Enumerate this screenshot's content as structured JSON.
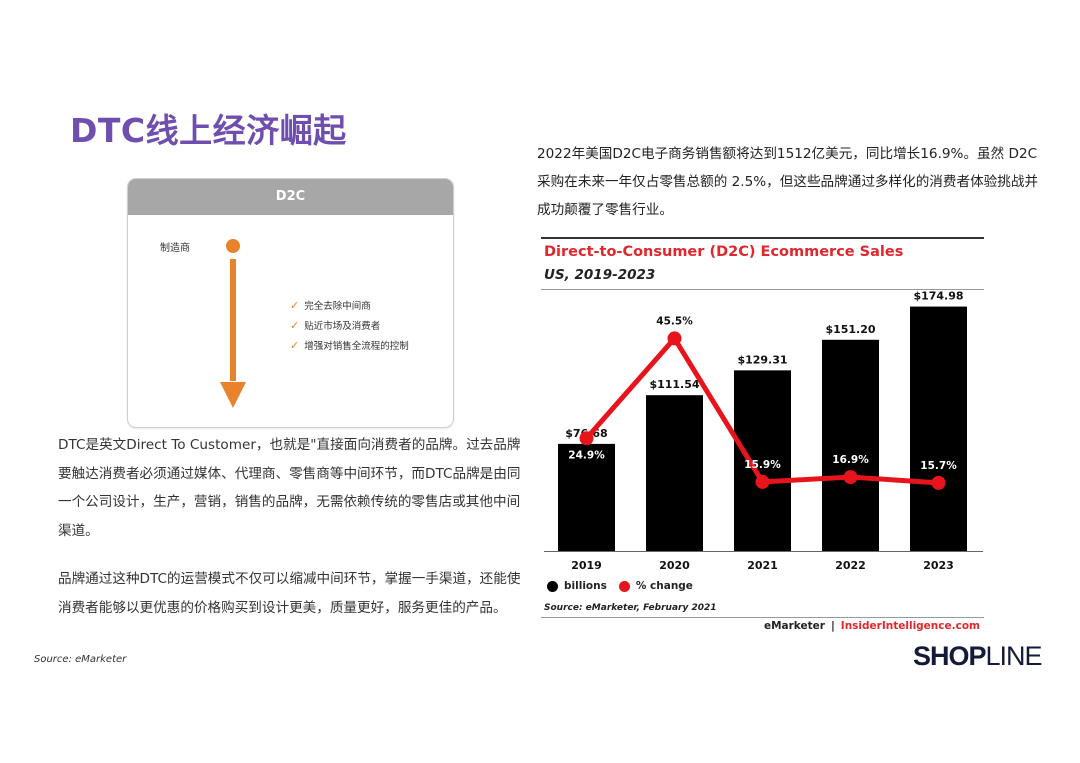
{
  "page_title": "DTC线上经济崛起",
  "diagram": {
    "header": "D2C",
    "maker": "制造商",
    "checks": [
      "完全去除中间商",
      "贴近市场及消费者",
      "增强对销售全流程的控制"
    ]
  },
  "left_text": {
    "p1": "DTC是英文Direct To Customer，也就是\"直接面向消费者的品牌。过去品牌要触达消费者必须通过媒体、代理商、零售商等中间环节，而DTC品牌是由同一个公司设计，生产，营销，销售的品牌，无需依赖传统的零售店或其他中间渠道。",
    "p2": "品牌通过这种DTC的运营模式不仅可以缩减中间环节，掌握一手渠道，还能使消费者能够以更优惠的价格购买到设计更美，质量更好，服务更佳的产品。",
    "source": "Source: eMarketer"
  },
  "right_text": "2022年美国D2C电子商务销售额将达到1512亿美元，同比增长16.9%。虽然 D2C 采购在未来一年仅占零售总额的 2.5%，但这些品牌通过多样化的消费者体验挑战并成功颠覆了零售行业。",
  "chart_data": {
    "type": "bar",
    "title": "Direct-to-Consumer (D2C) Ecommerce Sales",
    "subtitle": "US, 2019-2023",
    "categories": [
      "2019",
      "2020",
      "2021",
      "2022",
      "2023"
    ],
    "series": [
      {
        "name": "billions",
        "type": "bar",
        "values": [
          76.68,
          111.54,
          129.31,
          151.2,
          174.98
        ],
        "labels": [
          "$76.68",
          "$111.54",
          "$129.31",
          "$151.20",
          "$174.98"
        ],
        "color": "#000000"
      },
      {
        "name": "% change",
        "type": "line",
        "values": [
          24.9,
          45.5,
          15.9,
          16.9,
          15.7
        ],
        "labels": [
          "24.9%",
          "45.5%",
          "15.9%",
          "16.9%",
          "15.7%"
        ],
        "color": "#e8141c"
      }
    ],
    "bar_ylim": [
      0,
      180
    ],
    "line_ylim": [
      0,
      60
    ],
    "legend_position": "bottom-left",
    "source": "Source: eMarketer, February 2021",
    "credit_left": "eMarketer",
    "credit_sep": "|",
    "credit_right": "InsiderIntelligence.com"
  },
  "brand": {
    "shop": "SHOP",
    "line": "LINE"
  },
  "colors": {
    "title_purple": "#6e4fb0",
    "accent_orange": "#e8822d",
    "chart_red": "#e1262d",
    "bar_black": "#000000"
  }
}
